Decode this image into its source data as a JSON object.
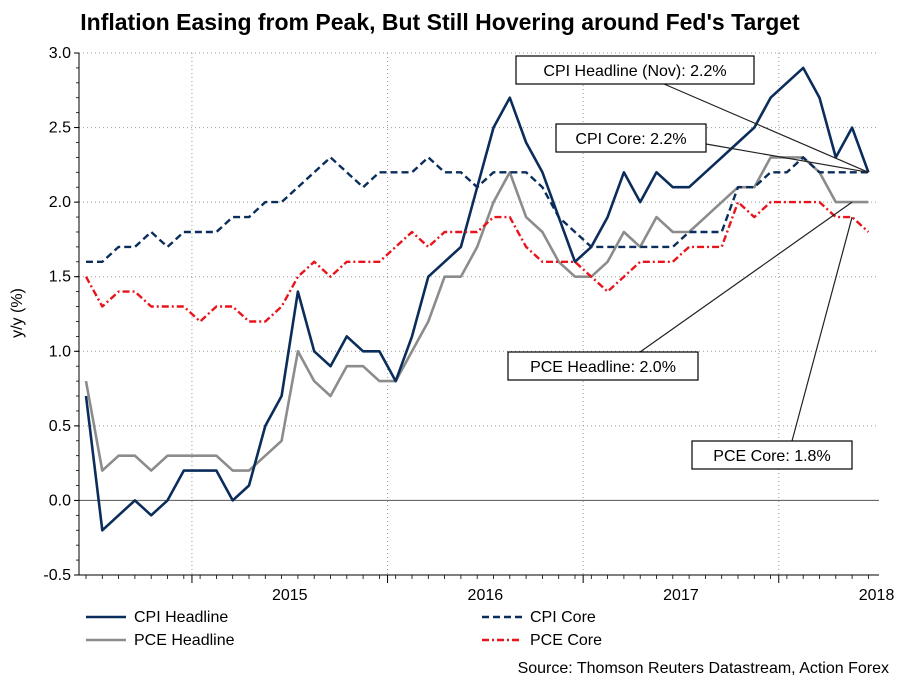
{
  "chart_data": {
    "type": "line",
    "title": "Inflation Easing from Peak, But Still Hovering around Fed's Target",
    "ylabel": "y/y (%)",
    "xlabel": "",
    "ylim": [
      -0.5,
      3.0
    ],
    "yticks": [
      "3.0",
      "2.5",
      "2.0",
      "1.5",
      "1.0",
      "0.5",
      "0.0",
      "-0.5"
    ],
    "ytick_values": [
      3.0,
      2.5,
      2.0,
      1.5,
      1.0,
      0.5,
      0.0,
      -0.5
    ],
    "x_start": "2014-06",
    "years": [
      "2015",
      "2016",
      "2017",
      "2018"
    ],
    "grid": true,
    "series": [
      {
        "name": "CPI Headline",
        "color": "#0b2d5b",
        "style": "solid",
        "values": [
          0.7,
          -0.2,
          -0.1,
          0.0,
          -0.1,
          0.0,
          0.2,
          0.2,
          0.2,
          0.0,
          0.1,
          0.5,
          0.7,
          1.4,
          1.0,
          0.9,
          1.1,
          1.0,
          1.0,
          0.8,
          1.1,
          1.5,
          1.6,
          1.7,
          2.1,
          2.5,
          2.7,
          2.4,
          2.2,
          1.9,
          1.6,
          1.7,
          1.9,
          2.2,
          2.0,
          2.2,
          2.1,
          2.1,
          2.2,
          2.3,
          2.4,
          2.5,
          2.7,
          2.8,
          2.9,
          2.7,
          2.3,
          2.5,
          2.2
        ]
      },
      {
        "name": "PCE Headline",
        "color": "#8c8c8c",
        "style": "solid",
        "values": [
          0.8,
          0.2,
          0.3,
          0.3,
          0.2,
          0.3,
          0.3,
          0.3,
          0.3,
          0.2,
          0.2,
          0.3,
          0.4,
          1.0,
          0.8,
          0.7,
          0.9,
          0.9,
          0.8,
          0.8,
          1.0,
          1.2,
          1.5,
          1.5,
          1.7,
          2.0,
          2.2,
          1.9,
          1.8,
          1.6,
          1.5,
          1.5,
          1.6,
          1.8,
          1.7,
          1.9,
          1.8,
          1.8,
          1.9,
          2.0,
          2.1,
          2.1,
          2.3,
          2.3,
          2.3,
          2.2,
          2.0,
          2.0,
          2.0
        ]
      },
      {
        "name": "CPI Core",
        "color": "#0b2d5b",
        "style": "dashed",
        "values": [
          1.6,
          1.6,
          1.7,
          1.7,
          1.8,
          1.7,
          1.8,
          1.8,
          1.8,
          1.9,
          1.9,
          2.0,
          2.0,
          2.1,
          2.2,
          2.3,
          2.2,
          2.1,
          2.2,
          2.2,
          2.2,
          2.3,
          2.2,
          2.2,
          2.1,
          2.2,
          2.2,
          2.2,
          2.1,
          1.9,
          1.8,
          1.7,
          1.7,
          1.7,
          1.7,
          1.7,
          1.7,
          1.8,
          1.8,
          1.8,
          2.1,
          2.1,
          2.2,
          2.2,
          2.3,
          2.2,
          2.2,
          2.2,
          2.2
        ]
      },
      {
        "name": "PCE Core",
        "color": "#e8141c",
        "style": "dashdot",
        "values": [
          1.5,
          1.3,
          1.4,
          1.4,
          1.3,
          1.3,
          1.3,
          1.2,
          1.3,
          1.3,
          1.2,
          1.2,
          1.3,
          1.5,
          1.6,
          1.5,
          1.6,
          1.6,
          1.6,
          1.7,
          1.8,
          1.7,
          1.8,
          1.8,
          1.8,
          1.9,
          1.9,
          1.7,
          1.6,
          1.6,
          1.6,
          1.5,
          1.4,
          1.5,
          1.6,
          1.6,
          1.6,
          1.7,
          1.7,
          1.7,
          2.0,
          1.9,
          2.0,
          2.0,
          2.0,
          2.0,
          1.9,
          1.9,
          1.8
        ]
      }
    ],
    "annotations": [
      {
        "text": "CPI Headline (Nov): 2.2%"
      },
      {
        "text": "CPI Core: 2.2%"
      },
      {
        "text": "PCE Headline: 2.0%"
      },
      {
        "text": "PCE Core: 1.8%"
      }
    ],
    "legend_position": "bottom",
    "source": "Source: Thomson Reuters Datastream, Action Forex"
  }
}
